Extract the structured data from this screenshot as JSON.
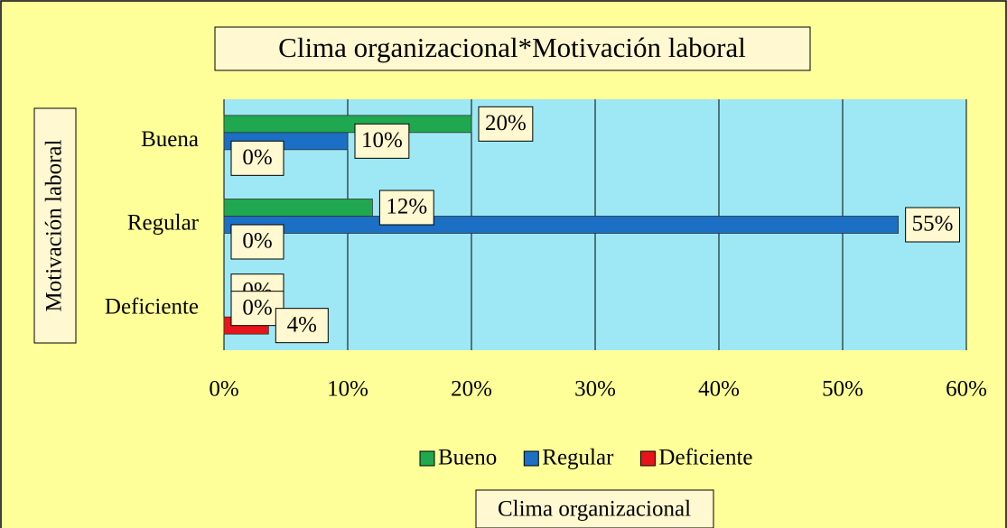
{
  "chart_data": {
    "type": "hbar",
    "title": "Clima organizacional*Motivación laboral",
    "x_label": "Clima organizacional",
    "y_label": "Motivación laboral",
    "categories": [
      "Buena",
      "Regular",
      "Deficiente"
    ],
    "series": [
      {
        "name": "Bueno",
        "color": "#1fa84f",
        "values": [
          20,
          12,
          0
        ],
        "value_labels": [
          "20%",
          "12%",
          "0%"
        ]
      },
      {
        "name": "Regular",
        "color": "#1b6fc4",
        "values": [
          10,
          54.5,
          0
        ],
        "value_labels": [
          "10%",
          "55%",
          "0%"
        ]
      },
      {
        "name": "Deficiente",
        "color": "#e8141b",
        "values": [
          0,
          0,
          3.6
        ],
        "value_labels": [
          "0%",
          "0%",
          "4%"
        ]
      }
    ],
    "xlim": [
      0,
      60
    ],
    "xticks": [
      {
        "value": 0,
        "label": "0%"
      },
      {
        "value": 10,
        "label": "10%"
      },
      {
        "value": 20,
        "label": "20%"
      },
      {
        "value": 30,
        "label": "30%"
      },
      {
        "value": 40,
        "label": "40%"
      },
      {
        "value": 50,
        "label": "50%"
      },
      {
        "value": 60,
        "label": "60%"
      }
    ],
    "grid": true,
    "legend": "bottom"
  }
}
